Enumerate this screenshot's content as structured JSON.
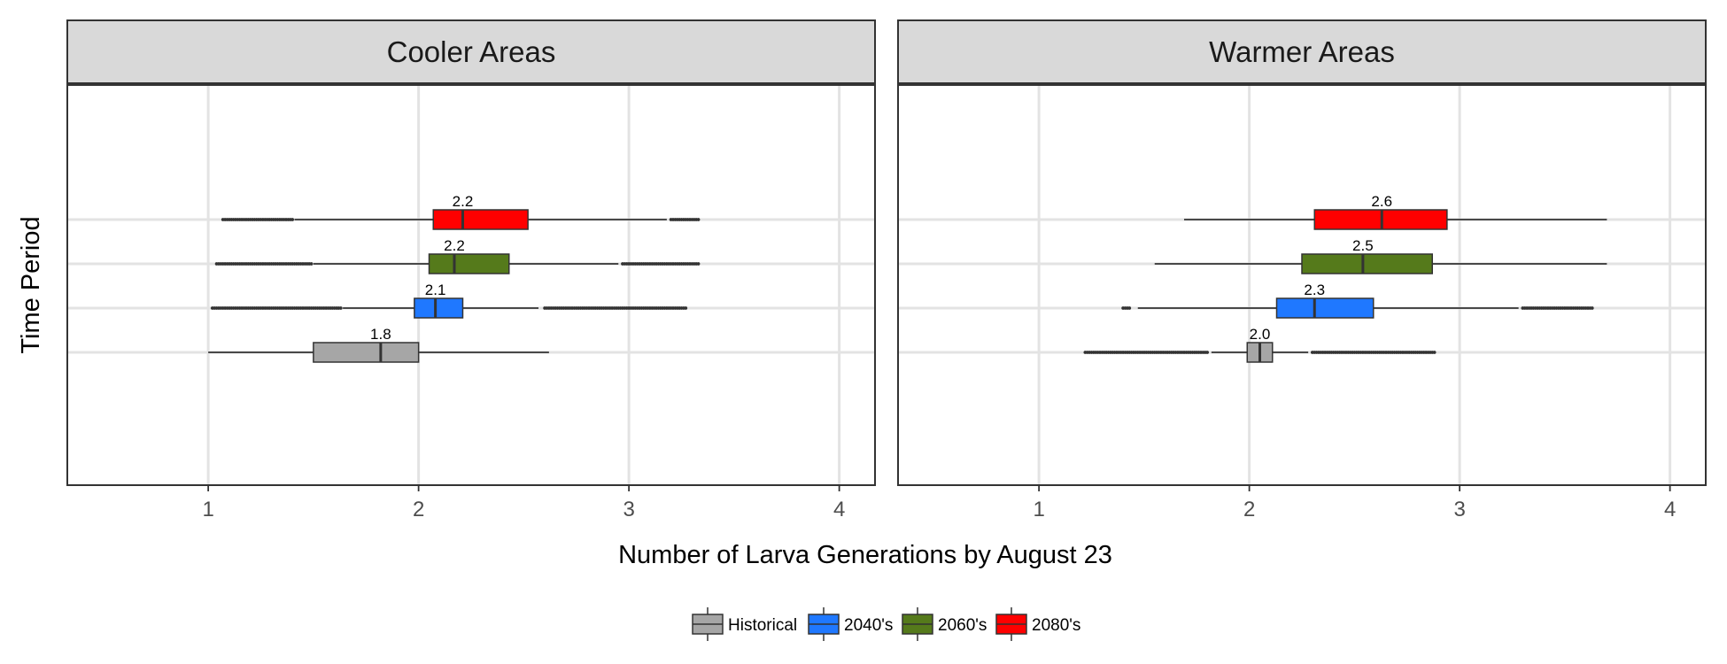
{
  "chart_data": {
    "type": "boxplot",
    "xlabel": "Number of Larva Generations by August 23",
    "ylabel": "Time Period",
    "xlim": [
      0.33,
      4.17
    ],
    "x_ticks": [
      1,
      2,
      3,
      4
    ],
    "x_tick_labels": [
      "1",
      "2",
      "3",
      "4"
    ],
    "grid": true,
    "orientation": "horizontal",
    "series": [
      {
        "name": "Historical",
        "color": "#a6a6a6"
      },
      {
        "name": "2040's",
        "color": "#1f78ff"
      },
      {
        "name": "2060's",
        "color": "#557a1b"
      },
      {
        "name": "2080's",
        "color": "#ff0000"
      }
    ],
    "legend": {
      "position": "bottom",
      "items": [
        "Historical",
        "2040's",
        "2060's",
        "2080's"
      ]
    },
    "panels": [
      {
        "title": "Cooler Areas",
        "boxes": [
          {
            "series": "Historical",
            "median_label": "1.8",
            "whisker_low": 1.0,
            "q1": 1.5,
            "median": 1.82,
            "q3": 2.0,
            "whisker_high": 2.62,
            "outliers_low": [],
            "outliers_high": []
          },
          {
            "series": "2040's",
            "median_label": "2.1",
            "whisker_low": 1.64,
            "q1": 1.98,
            "median": 2.08,
            "q3": 2.21,
            "whisker_high": 2.57,
            "outliers_low": [
              1.02,
              1.1,
              1.2,
              1.3,
              1.4,
              1.5,
              1.6,
              1.63
            ],
            "outliers_high": [
              2.6,
              2.7,
              2.8,
              2.9,
              3.0,
              3.05,
              3.1,
              3.15,
              3.2,
              3.27
            ]
          },
          {
            "series": "2060's",
            "median_label": "2.2",
            "whisker_low": 1.5,
            "q1": 2.05,
            "median": 2.17,
            "q3": 2.43,
            "whisker_high": 2.95,
            "outliers_low": [
              1.04,
              1.1,
              1.2,
              1.3,
              1.4,
              1.49
            ],
            "outliers_high": [
              2.97,
              3.05,
              3.15,
              3.2,
              3.25,
              3.33
            ]
          },
          {
            "series": "2080's",
            "median_label": "2.2",
            "whisker_low": 1.41,
            "q1": 2.07,
            "median": 2.21,
            "q3": 2.52,
            "whisker_high": 3.18,
            "outliers_low": [
              1.07,
              1.15,
              1.25,
              1.35,
              1.4
            ],
            "outliers_high": [
              3.2,
              3.24,
              3.28,
              3.33
            ]
          }
        ]
      },
      {
        "title": "Warmer Areas",
        "boxes": [
          {
            "series": "Historical",
            "median_label": "2.0",
            "whisker_low": 1.82,
            "q1": 1.99,
            "median": 2.05,
            "q3": 2.11,
            "whisker_high": 2.28,
            "outliers_low": [
              1.22,
              1.3,
              1.4,
              1.5,
              1.6,
              1.7,
              1.8
            ],
            "outliers_high": [
              2.3,
              2.4,
              2.5,
              2.6,
              2.7,
              2.8,
              2.88
            ]
          },
          {
            "series": "2040's",
            "median_label": "2.3",
            "whisker_low": 1.47,
            "q1": 2.13,
            "median": 2.31,
            "q3": 2.59,
            "whisker_high": 3.28,
            "outliers_low": [
              1.4,
              1.43
            ],
            "outliers_high": [
              3.3,
              3.4,
              3.5,
              3.55,
              3.63
            ]
          },
          {
            "series": "2060's",
            "median_label": "2.5",
            "whisker_low": 1.55,
            "q1": 2.25,
            "median": 2.54,
            "q3": 2.87,
            "whisker_high": 3.7,
            "outliers_low": [],
            "outliers_high": []
          },
          {
            "series": "2080's",
            "median_label": "2.6",
            "whisker_low": 1.69,
            "q1": 2.31,
            "median": 2.63,
            "q3": 2.94,
            "whisker_high": 3.7,
            "outliers_low": [],
            "outliers_high": []
          }
        ]
      }
    ]
  }
}
